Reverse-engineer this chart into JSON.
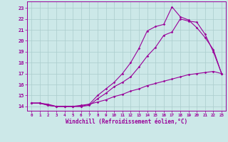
{
  "xlabel": "Windchill (Refroidissement éolien,°C)",
  "background_color": "#cce8e8",
  "grid_color": "#aacccc",
  "line_color": "#990099",
  "x_ticks": [
    0,
    1,
    2,
    3,
    4,
    5,
    6,
    7,
    8,
    9,
    10,
    11,
    12,
    13,
    14,
    15,
    16,
    17,
    18,
    19,
    20,
    21,
    22,
    23
  ],
  "y_ticks": [
    14,
    15,
    16,
    17,
    18,
    19,
    20,
    21,
    22,
    23
  ],
  "xlim": [
    -0.5,
    23.5
  ],
  "ylim": [
    13.6,
    23.6
  ],
  "series": [
    {
      "x": [
        0,
        1,
        2,
        3,
        4,
        5,
        6,
        7,
        8,
        9,
        10,
        11,
        12,
        13,
        14,
        15,
        16,
        17,
        18,
        19,
        20,
        21,
        22,
        23
      ],
      "y": [
        14.3,
        14.3,
        14.2,
        14.0,
        14.0,
        14.0,
        14.1,
        14.2,
        14.4,
        14.6,
        14.9,
        15.1,
        15.4,
        15.6,
        15.9,
        16.1,
        16.3,
        16.5,
        16.7,
        16.9,
        17.0,
        17.1,
        17.2,
        17.0
      ]
    },
    {
      "x": [
        0,
        1,
        2,
        3,
        4,
        5,
        6,
        7,
        8,
        9,
        10,
        11,
        12,
        13,
        14,
        15,
        16,
        17,
        18,
        19,
        20,
        21,
        22,
        23
      ],
      "y": [
        14.3,
        14.3,
        14.1,
        14.0,
        14.0,
        14.0,
        14.0,
        14.1,
        14.7,
        15.2,
        15.8,
        16.2,
        16.7,
        17.6,
        18.6,
        19.4,
        20.5,
        20.8,
        22.0,
        21.8,
        21.7,
        20.6,
        19.0,
        17.0
      ]
    },
    {
      "x": [
        0,
        1,
        2,
        3,
        4,
        5,
        6,
        7,
        8,
        9,
        10,
        11,
        12,
        13,
        14,
        15,
        16,
        17,
        18,
        19,
        20,
        21,
        22,
        23
      ],
      "y": [
        14.3,
        14.3,
        14.1,
        14.0,
        14.0,
        14.0,
        14.0,
        14.2,
        15.0,
        15.6,
        16.2,
        17.0,
        18.0,
        19.3,
        20.9,
        21.3,
        21.5,
        23.1,
        22.2,
        21.9,
        21.2,
        20.3,
        19.2,
        17.0
      ]
    }
  ]
}
